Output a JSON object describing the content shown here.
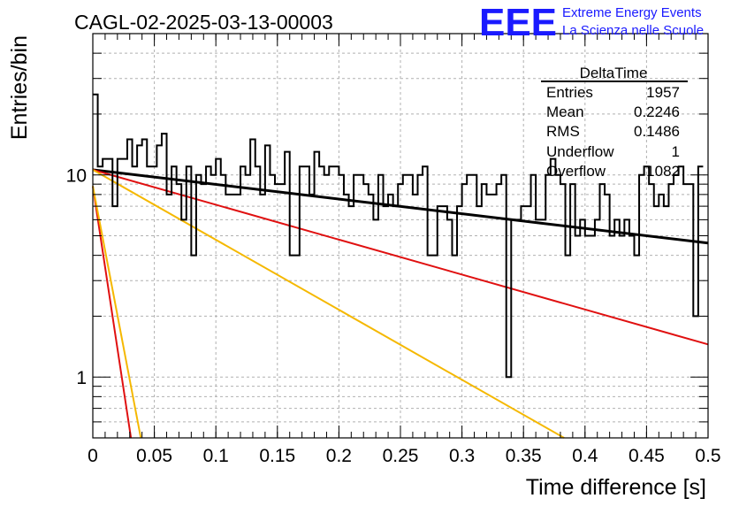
{
  "run_title": "CAGL-02-2025-03-13-00003",
  "logo": {
    "text": "EEE",
    "line1": "Extreme Energy Events",
    "line2": "La Scienza nelle Scuole",
    "color": "#1a1aff"
  },
  "stats": {
    "name": "DeltaTime",
    "rows": [
      {
        "label": "Entries",
        "value": "1957"
      },
      {
        "label": "Mean",
        "value": "0.2246"
      },
      {
        "label": "RMS",
        "value": "0.1486"
      },
      {
        "label": "Underflow",
        "value": "1"
      },
      {
        "label": "Overflow",
        "value": "1082"
      }
    ]
  },
  "chart_data": {
    "type": "line",
    "xlabel": "Time difference [s]",
    "ylabel": "Entries/bin",
    "xlim": [
      0,
      0.5
    ],
    "ylim": [
      0.5,
      50
    ],
    "yscale": "log",
    "grid": true,
    "x_ticks": [
      "0",
      "0.05",
      "0.1",
      "0.15",
      "0.2",
      "0.25",
      "0.3",
      "0.35",
      "0.4",
      "0.45",
      "0.5"
    ],
    "y_ticks": [
      "1",
      "10"
    ],
    "histogram": {
      "bin_width": 0.004,
      "values": [
        25,
        11,
        12,
        12,
        7,
        12,
        12,
        15,
        11,
        14,
        15,
        11,
        11,
        14,
        16,
        8,
        11,
        9,
        6,
        11,
        4,
        10,
        9,
        11,
        10,
        12,
        10,
        8,
        8,
        8,
        11,
        10,
        15,
        11,
        8,
        14,
        10,
        9,
        9,
        13,
        4,
        4,
        11,
        11,
        8,
        13,
        11,
        10,
        11,
        11,
        10,
        8,
        7,
        10,
        10,
        9,
        8,
        6,
        10,
        7,
        8,
        7,
        9,
        10,
        10,
        8,
        10,
        11,
        4,
        4,
        7,
        7,
        6,
        4,
        7,
        9,
        10,
        10,
        7,
        9,
        8,
        8,
        9,
        10,
        1,
        6,
        6,
        7,
        7,
        10,
        6,
        6,
        10,
        12,
        10,
        9,
        4,
        9,
        5,
        6,
        5,
        5,
        6,
        9,
        8,
        5,
        6,
        5,
        6,
        5,
        4,
        10,
        11,
        9,
        7,
        8,
        7,
        9,
        10,
        11,
        9,
        9,
        2,
        11
      ]
    },
    "fits": [
      {
        "color": "#000000",
        "y_at_0": 10.6,
        "y_at_05": 4.6
      },
      {
        "color": "#e01010",
        "y_at_0": 10.6,
        "y_at_05": 1.45
      },
      {
        "color": "#f5b800",
        "y_at_0": 10.6,
        "y_at_0383": 0.5
      },
      {
        "color": "#e01010",
        "y_at_0": 8.8,
        "y_at_0031": 0.5
      },
      {
        "color": "#f5b800",
        "y_at_0": 8.8,
        "y_at_0039": 0.5
      }
    ]
  }
}
